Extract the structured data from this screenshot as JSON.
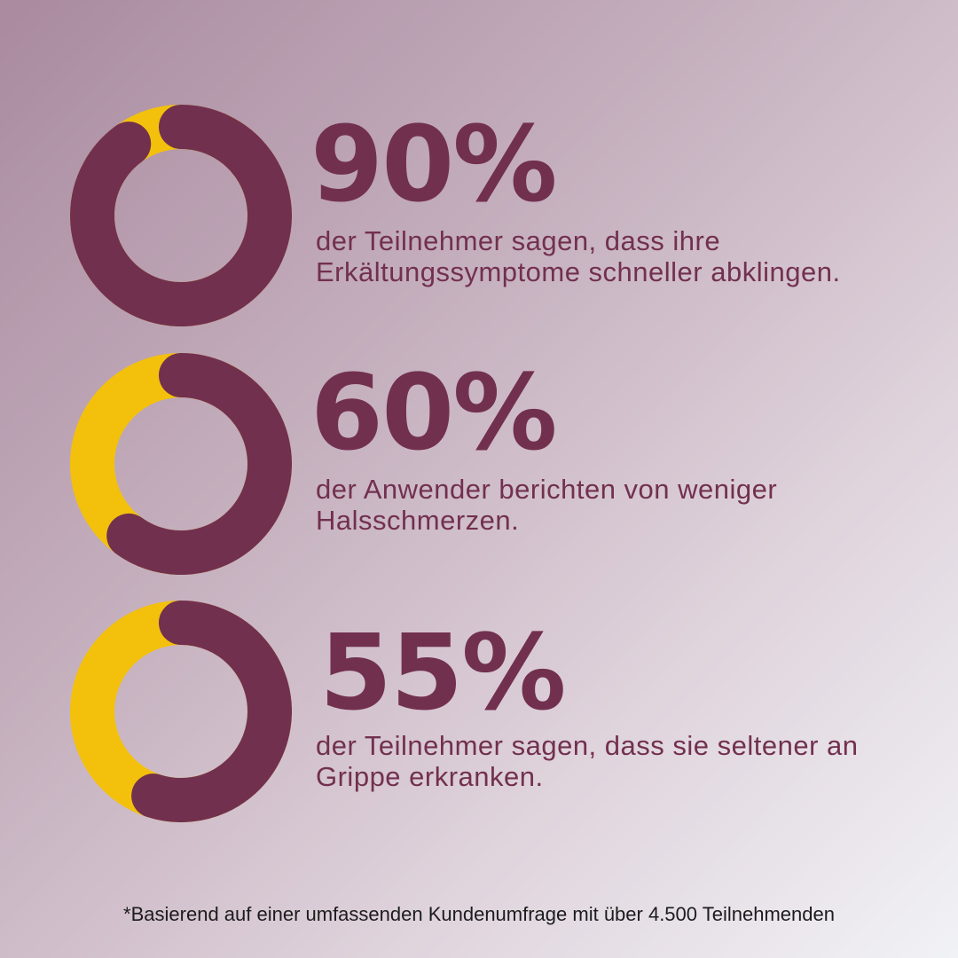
{
  "colors": {
    "primary": "#72304f",
    "accent": "#f3c10b"
  },
  "chart_data": [
    {
      "type": "pie",
      "variant": "donut",
      "slices": [
        {
          "value": 90,
          "color": "#72304f"
        },
        {
          "value": 10,
          "color": "#f3c10b"
        }
      ],
      "value_label": "90%",
      "description": "der Teilnehmer sagen, dass ihre Erkältungssymptome schneller abklingen."
    },
    {
      "type": "pie",
      "variant": "donut",
      "slices": [
        {
          "value": 60,
          "color": "#72304f"
        },
        {
          "value": 40,
          "color": "#f3c10b"
        }
      ],
      "value_label": "60%",
      "description": "der Anwender berichten von weniger Halsschmerzen."
    },
    {
      "type": "pie",
      "variant": "donut",
      "slices": [
        {
          "value": 55,
          "color": "#72304f"
        },
        {
          "value": 45,
          "color": "#f3c10b"
        }
      ],
      "value_label": "55%",
      "description": "der Teilnehmer sagen, dass sie seltener an Grippe erkranken."
    }
  ],
  "footnote": "*Basierend auf einer umfassenden Kundenumfrage mit über 4.500 Teilnehmenden"
}
